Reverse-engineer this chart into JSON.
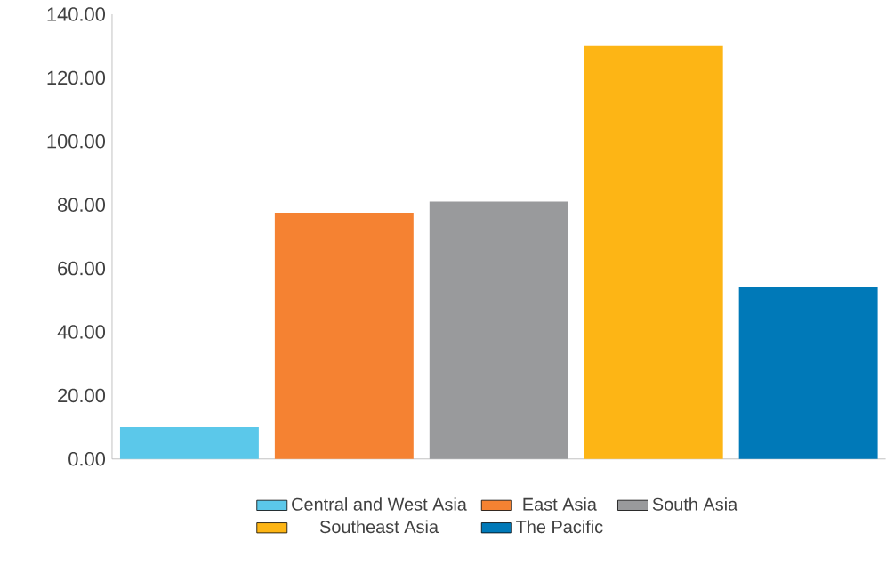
{
  "chart_data": {
    "type": "bar",
    "categories": [
      null,
      null,
      null,
      null,
      null
    ],
    "series": [
      {
        "name": "Central and West Asia",
        "color": "#5bc8ea",
        "values": [
          10,
          null,
          null,
          null,
          null
        ]
      },
      {
        "name": "East Asia",
        "color": "#f58232",
        "values": [
          null,
          77.5,
          null,
          null,
          null
        ]
      },
      {
        "name": "South Asia",
        "color": "#999a9c",
        "values": [
          null,
          null,
          81,
          null,
          null
        ]
      },
      {
        "name": "Southeast Asia",
        "color": "#fdb515",
        "values": [
          null,
          null,
          null,
          130,
          null
        ]
      },
      {
        "name": "The Pacific",
        "color": "#0079b8",
        "values": [
          null,
          null,
          null,
          null,
          54
        ]
      }
    ],
    "ylim": [
      0,
      140
    ],
    "yticks": [
      {
        "value": 0,
        "label": "0.00"
      },
      {
        "value": 20,
        "label": "20.00"
      },
      {
        "value": 40,
        "label": "40.00"
      },
      {
        "value": 60,
        "label": "60.00"
      },
      {
        "value": 80,
        "label": "80.00"
      },
      {
        "value": 100,
        "label": "100.00"
      },
      {
        "value": 120,
        "label": "120.00"
      },
      {
        "value": 140,
        "label": "140.00"
      }
    ],
    "grid": false,
    "legend": "bottom"
  }
}
